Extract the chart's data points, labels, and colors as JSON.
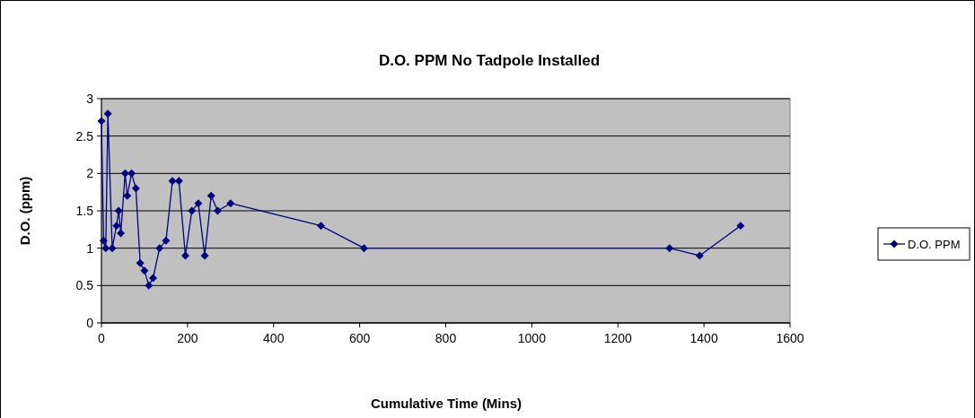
{
  "chart_data": {
    "type": "line",
    "title": "D.O. PPM No Tadpole Installed",
    "xlabel": "Cumulative Time (Mins)",
    "ylabel": "D.O. (ppm)",
    "x": [
      0,
      5,
      10,
      15,
      25,
      35,
      40,
      45,
      55,
      60,
      70,
      80,
      90,
      100,
      110,
      120,
      135,
      150,
      165,
      180,
      195,
      210,
      225,
      240,
      255,
      270,
      300,
      510,
      610,
      1320,
      1390,
      1485
    ],
    "series": [
      {
        "name": "D.O. PPM",
        "color": "#000080",
        "values": [
          2.7,
          1.1,
          1.0,
          2.8,
          1.0,
          1.3,
          1.5,
          1.2,
          2.0,
          1.7,
          2.0,
          1.8,
          0.8,
          0.7,
          0.5,
          0.6,
          1.0,
          1.1,
          1.9,
          1.9,
          0.9,
          1.5,
          1.6,
          0.9,
          1.7,
          1.5,
          1.6,
          1.3,
          1.0,
          1.0,
          0.9,
          1.3
        ]
      }
    ],
    "xlim": [
      0,
      1600
    ],
    "xticks": [
      0,
      200,
      400,
      600,
      800,
      1000,
      1200,
      1400,
      1600
    ],
    "ylim": [
      0,
      3
    ],
    "yticks": [
      0,
      0.5,
      1,
      1.5,
      2,
      2.5,
      3
    ],
    "grid": "y",
    "legend": "right",
    "marker": "diamond",
    "line_style": "solid"
  }
}
